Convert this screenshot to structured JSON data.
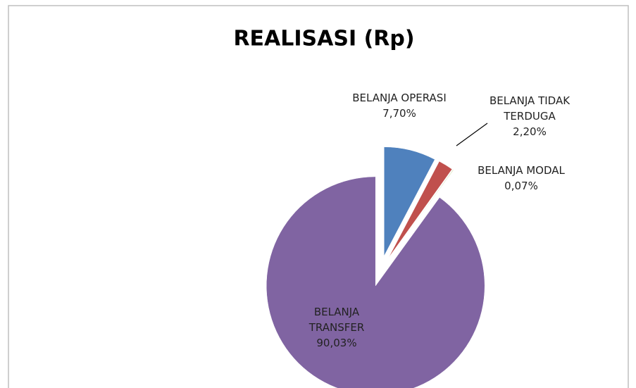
{
  "chart_data": {
    "type": "pie",
    "title": "REALISASI (Rp)",
    "categories": [
      "BELANJA OPERASI",
      "BELANJA TIDAK TERDUGA",
      "BELANJA MODAL",
      "BELANJA TRANSFER"
    ],
    "values": [
      7.7,
      2.2,
      0.07,
      90.03
    ],
    "value_labels": [
      "7,70%",
      "2,20%",
      "0,07%",
      "90,03%"
    ],
    "colors": [
      "#4f81bd",
      "#c0504d",
      "#9bbb59",
      "#8064a2"
    ]
  }
}
